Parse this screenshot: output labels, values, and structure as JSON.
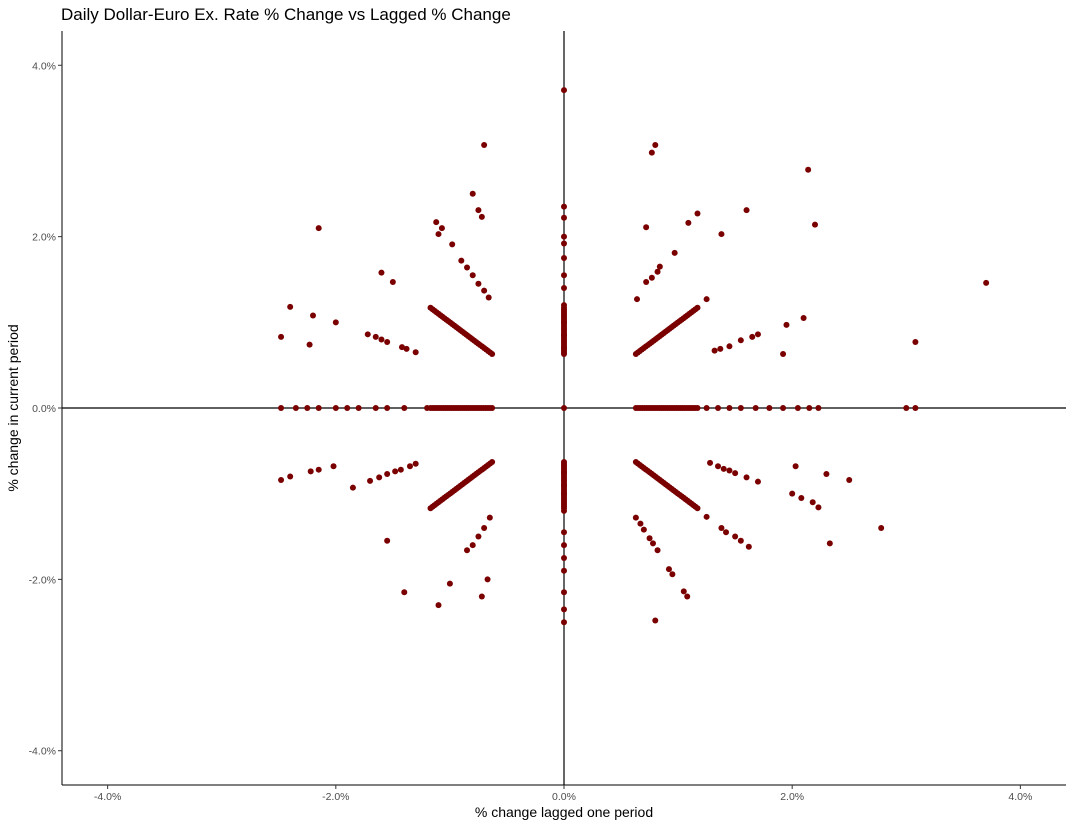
{
  "chart_data": {
    "type": "scatter",
    "title": "Daily Dollar-Euro Ex. Rate % Change vs Lagged % Change",
    "xlabel": "% change lagged one period",
    "ylabel": "% change in current period",
    "xlim": [
      -4.4,
      4.4
    ],
    "ylim": [
      -4.4,
      4.4
    ],
    "x_ticks": [
      -4,
      -2,
      0,
      2,
      4
    ],
    "x_tick_labels": [
      "-4.0%",
      "-2.0%",
      "0.0%",
      "2.0%",
      "4.0%"
    ],
    "y_ticks": [
      -4,
      -2,
      0,
      2,
      4
    ],
    "y_tick_labels": [
      "-4.0%",
      "-2.0%",
      "0.0%",
      "2.0%",
      "4.0%"
    ],
    "point_color": "#7a0000",
    "reference_lines": {
      "x": 0,
      "y": 0,
      "color": "#000000"
    },
    "grid": false,
    "points": [
      [
        3.7,
        1.46
      ],
      [
        3.08,
        0.77
      ],
      [
        3.0,
        0.0
      ],
      [
        3.08,
        0.0
      ],
      [
        2.78,
        -1.4
      ],
      [
        2.5,
        -0.84
      ],
      [
        2.33,
        -1.58
      ],
      [
        2.3,
        -0.77
      ],
      [
        2.2,
        2.14
      ],
      [
        2.14,
        2.78
      ],
      [
        2.1,
        1.05
      ],
      [
        2.23,
        -1.16
      ],
      [
        2.18,
        -1.1
      ],
      [
        2.08,
        -1.05
      ],
      [
        2.03,
        -0.68
      ],
      [
        2.0,
        -1.0
      ],
      [
        1.95,
        0.97
      ],
      [
        1.92,
        0.63
      ],
      [
        1.6,
        2.31
      ],
      [
        1.38,
        2.03
      ],
      [
        1.17,
        2.27
      ],
      [
        1.09,
        2.16
      ],
      [
        0.97,
        1.81
      ],
      [
        0.84,
        1.65
      ],
      [
        0.82,
        1.59
      ],
      [
        0.77,
        1.52
      ],
      [
        0.72,
        1.47
      ],
      [
        0.8,
        3.07
      ],
      [
        0.77,
        2.98
      ],
      [
        0.72,
        2.11
      ],
      [
        0.64,
        1.27
      ],
      [
        1.25,
        1.27
      ],
      [
        1.7,
        0.86
      ],
      [
        1.65,
        0.83
      ],
      [
        1.55,
        0.79
      ],
      [
        1.45,
        0.72
      ],
      [
        1.37,
        0.69
      ],
      [
        1.32,
        0.67
      ],
      [
        1.62,
        -1.62
      ],
      [
        1.55,
        -1.55
      ],
      [
        1.5,
        -1.5
      ],
      [
        1.42,
        -1.45
      ],
      [
        1.38,
        -1.4
      ],
      [
        1.7,
        -0.86
      ],
      [
        1.6,
        -0.81
      ],
      [
        1.5,
        -0.76
      ],
      [
        1.45,
        -0.73
      ],
      [
        1.4,
        -0.71
      ],
      [
        1.35,
        -0.68
      ],
      [
        1.28,
        -0.64
      ],
      [
        1.25,
        -1.27
      ],
      [
        1.08,
        -2.2
      ],
      [
        1.05,
        -2.14
      ],
      [
        0.95,
        -1.94
      ],
      [
        0.92,
        -1.88
      ],
      [
        0.8,
        -2.48
      ],
      [
        0.82,
        -1.66
      ],
      [
        0.78,
        -1.58
      ],
      [
        0.75,
        -1.52
      ],
      [
        0.7,
        -1.42
      ],
      [
        0.67,
        -1.35
      ],
      [
        0.63,
        -1.28
      ],
      [
        -0.7,
        3.07
      ],
      [
        -0.75,
        2.31
      ],
      [
        -0.8,
        2.5
      ],
      [
        -0.72,
        2.23
      ],
      [
        -0.98,
        1.91
      ],
      [
        -1.07,
        2.1
      ],
      [
        -1.1,
        2.03
      ],
      [
        -1.12,
        2.17
      ],
      [
        -0.9,
        1.72
      ],
      [
        -0.85,
        1.64
      ],
      [
        -0.8,
        1.55
      ],
      [
        -0.75,
        1.45
      ],
      [
        -0.7,
        1.37
      ],
      [
        -0.66,
        1.29
      ],
      [
        -1.5,
        1.47
      ],
      [
        -1.6,
        1.58
      ],
      [
        -2.15,
        2.1
      ],
      [
        -2.4,
        1.18
      ],
      [
        -2.2,
        1.08
      ],
      [
        -2.0,
        1.0
      ],
      [
        -2.48,
        0.83
      ],
      [
        -2.23,
        0.74
      ],
      [
        -1.72,
        0.86
      ],
      [
        -1.65,
        0.83
      ],
      [
        -1.6,
        0.8
      ],
      [
        -1.55,
        0.77
      ],
      [
        -1.42,
        0.71
      ],
      [
        -1.38,
        0.69
      ],
      [
        -1.3,
        0.65
      ],
      [
        -2.48,
        -0.84
      ],
      [
        -2.4,
        -0.8
      ],
      [
        -2.22,
        -0.74
      ],
      [
        -2.15,
        -0.72
      ],
      [
        -2.02,
        -0.68
      ],
      [
        -1.85,
        -0.93
      ],
      [
        -1.7,
        -0.85
      ],
      [
        -1.62,
        -0.81
      ],
      [
        -1.55,
        -0.77
      ],
      [
        -1.48,
        -0.74
      ],
      [
        -1.43,
        -0.72
      ],
      [
        -1.35,
        -0.68
      ],
      [
        -1.3,
        -0.65
      ],
      [
        -1.55,
        -1.55
      ],
      [
        -1.4,
        -2.15
      ],
      [
        -1.1,
        -2.3
      ],
      [
        -1.0,
        -2.05
      ],
      [
        -0.72,
        -2.2
      ],
      [
        -0.67,
        -2.0
      ],
      [
        -0.85,
        -1.66
      ],
      [
        -0.8,
        -1.6
      ],
      [
        -0.75,
        -1.5
      ],
      [
        -0.7,
        -1.4
      ],
      [
        -0.65,
        -1.28
      ],
      [
        0.0,
        3.71
      ],
      [
        0.0,
        2.35
      ],
      [
        0.0,
        2.22
      ],
      [
        0.0,
        2.0
      ],
      [
        0.0,
        -2.5
      ],
      [
        0.0,
        -2.35
      ],
      [
        0.0,
        -2.15
      ],
      [
        0.0,
        0.0
      ],
      [
        0.0,
        -1.9
      ],
      [
        0.0,
        -1.75
      ],
      [
        0.0,
        -1.6
      ],
      [
        0.0,
        -1.45
      ],
      [
        0.0,
        -1.2
      ],
      [
        0.0,
        -1.0
      ],
      [
        0.0,
        -0.9
      ],
      [
        0.0,
        -0.75
      ],
      [
        0.0,
        1.92
      ],
      [
        0.0,
        1.75
      ],
      [
        0.0,
        1.55
      ],
      [
        0.0,
        1.4
      ],
      [
        0.0,
        1.2
      ],
      [
        0.0,
        1.0
      ],
      [
        0.0,
        0.85
      ],
      [
        0.0,
        0.7
      ],
      [
        -2.48,
        0.0
      ],
      [
        -2.35,
        0.0
      ],
      [
        -2.25,
        0.0
      ],
      [
        -2.15,
        0.0
      ],
      [
        -2.0,
        0.0
      ],
      [
        -1.9,
        0.0
      ],
      [
        -1.8,
        0.0
      ],
      [
        -1.65,
        0.0
      ],
      [
        -1.55,
        0.0
      ],
      [
        -1.4,
        0.0
      ],
      [
        -1.2,
        0.0
      ],
      [
        2.23,
        0.0
      ],
      [
        2.15,
        0.0
      ],
      [
        2.05,
        0.0
      ],
      [
        1.92,
        0.0
      ],
      [
        1.8,
        0.0
      ],
      [
        1.68,
        0.0
      ],
      [
        1.55,
        0.0
      ],
      [
        1.45,
        0.0
      ],
      [
        1.35,
        0.0
      ],
      [
        1.25,
        0.0
      ]
    ],
    "segments": [
      {
        "x1": 0.63,
        "y1": 0.63,
        "x2": 1.17,
        "y2": 1.17,
        "n": 32
      },
      {
        "x1": 0.63,
        "y1": -0.63,
        "x2": 1.17,
        "y2": -1.17,
        "n": 32
      },
      {
        "x1": -0.63,
        "y1": 0.63,
        "x2": -1.17,
        "y2": 1.17,
        "n": 32
      },
      {
        "x1": -0.63,
        "y1": -0.63,
        "x2": -1.17,
        "y2": -1.17,
        "n": 32
      },
      {
        "x1": 0.63,
        "y1": 0.0,
        "x2": 1.17,
        "y2": 0.0,
        "n": 30
      },
      {
        "x1": -0.63,
        "y1": 0.0,
        "x2": -1.17,
        "y2": 0.0,
        "n": 30
      },
      {
        "x1": 0.0,
        "y1": 0.63,
        "x2": 0.0,
        "y2": 1.17,
        "n": 26
      },
      {
        "x1": 0.0,
        "y1": -0.63,
        "x2": 0.0,
        "y2": -1.17,
        "n": 26
      }
    ]
  }
}
